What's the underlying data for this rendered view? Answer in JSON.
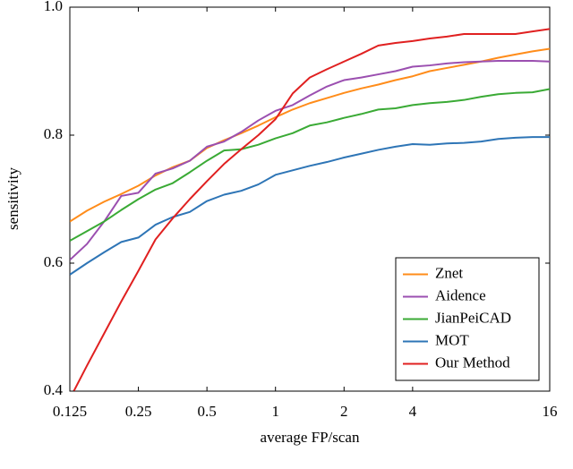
{
  "chart_data": {
    "type": "line",
    "x_label": "average FP/scan",
    "y_label": "sensitivity",
    "xscale": "log",
    "xlim": [
      0.125,
      16
    ],
    "xticks": [
      0.125,
      0.25,
      0.5,
      1,
      2,
      4,
      16
    ],
    "ylim": [
      0.4,
      1
    ],
    "yticks": [
      0.4,
      0.6,
      0.8,
      {
        "value": 1,
        "label": "1.0"
      }
    ],
    "grid": false,
    "legend": "lower right",
    "x": [
      0.125,
      0.1487,
      0.1768,
      0.2102,
      0.25,
      0.2973,
      0.3536,
      0.4204,
      0.5,
      0.5946,
      0.7071,
      0.8409,
      1,
      1.189,
      1.414,
      1.682,
      2,
      2.378,
      2.828,
      3.364,
      4,
      4.757,
      5.657,
      6.727,
      8,
      9.514,
      11.31,
      13.45,
      16
    ],
    "series": [
      {
        "name": "Znet",
        "color": "#ff8c1a",
        "values": [
          0.665,
          0.682,
          0.696,
          0.708,
          0.721,
          0.737,
          0.75,
          0.76,
          0.78,
          0.792,
          0.803,
          0.815,
          0.828,
          0.84,
          0.85,
          0.858,
          0.866,
          0.873,
          0.879,
          0.886,
          0.892,
          0.9,
          0.905,
          0.91,
          0.915,
          0.921,
          0.926,
          0.931,
          0.935
        ]
      },
      {
        "name": "Aidence",
        "color": "#9b4fb0",
        "values": [
          0.605,
          0.63,
          0.665,
          0.705,
          0.71,
          0.74,
          0.748,
          0.76,
          0.782,
          0.79,
          0.805,
          0.823,
          0.838,
          0.847,
          0.862,
          0.876,
          0.886,
          0.89,
          0.895,
          0.9,
          0.907,
          0.909,
          0.912,
          0.914,
          0.915,
          0.916,
          0.916,
          0.916,
          0.915
        ]
      },
      {
        "name": "JianPeiCAD",
        "color": "#3aaa35",
        "values": [
          0.635,
          0.65,
          0.665,
          0.683,
          0.7,
          0.715,
          0.725,
          0.742,
          0.76,
          0.776,
          0.778,
          0.785,
          0.795,
          0.803,
          0.815,
          0.82,
          0.827,
          0.833,
          0.84,
          0.842,
          0.847,
          0.85,
          0.852,
          0.855,
          0.86,
          0.864,
          0.866,
          0.867,
          0.872
        ]
      },
      {
        "name": "MOT",
        "color": "#2e75b6",
        "values": [
          0.582,
          0.6,
          0.617,
          0.633,
          0.64,
          0.66,
          0.672,
          0.68,
          0.697,
          0.707,
          0.713,
          0.723,
          0.738,
          0.745,
          0.752,
          0.758,
          0.765,
          0.771,
          0.777,
          0.782,
          0.786,
          0.785,
          0.787,
          0.788,
          0.79,
          0.794,
          0.796,
          0.797,
          0.797
        ]
      },
      {
        "name": "Our Method",
        "color": "#e02020",
        "values": [
          0.388,
          0.44,
          0.49,
          0.54,
          0.588,
          0.637,
          0.67,
          0.7,
          0.728,
          0.755,
          0.778,
          0.8,
          0.825,
          0.865,
          0.89,
          0.903,
          0.915,
          0.927,
          0.94,
          0.944,
          0.947,
          0.951,
          0.954,
          0.958,
          0.958,
          0.958,
          0.958,
          0.962,
          0.966
        ]
      }
    ]
  }
}
